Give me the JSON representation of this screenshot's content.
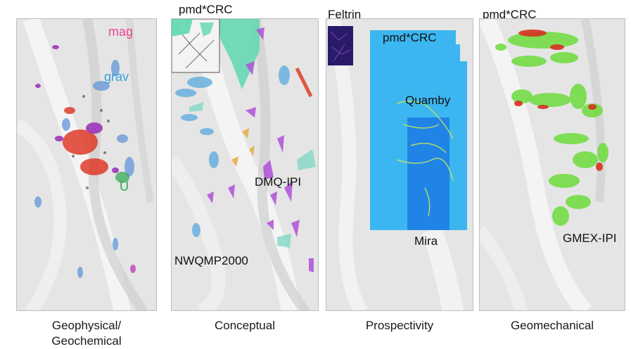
{
  "panels": [
    {
      "caption_line1": "Geophysical/",
      "caption_line2": "Geochemical",
      "labels": {
        "mag": "mag",
        "grav": "grav",
        "u": "U"
      },
      "colors": {
        "mag": "#e8458c",
        "grav": "#3aa0dc",
        "u": "#2aa84a"
      }
    },
    {
      "caption": "Conceptual",
      "top_label": "pmd*CRC",
      "labels": {
        "dmq": "DMQ-IPI",
        "nwqmp": "NWQMP2000"
      }
    },
    {
      "caption": "Prospectivity",
      "top_label": "Feltrin",
      "labels": {
        "pmd": "pmd*CRC",
        "quamby": "Quamby",
        "mira": "Mira"
      }
    },
    {
      "caption": "Geomechanical",
      "top_label": "pmd*CRC",
      "labels": {
        "gmex": "GMEX-IPI"
      }
    }
  ],
  "colors": {
    "terrain": "#e4e4e4",
    "prospectivity_light": "#3cb6f0",
    "prospectivity_dark": "#1f84e6",
    "geomech_green": "#6edc3c",
    "geomech_red": "#d4321e"
  }
}
